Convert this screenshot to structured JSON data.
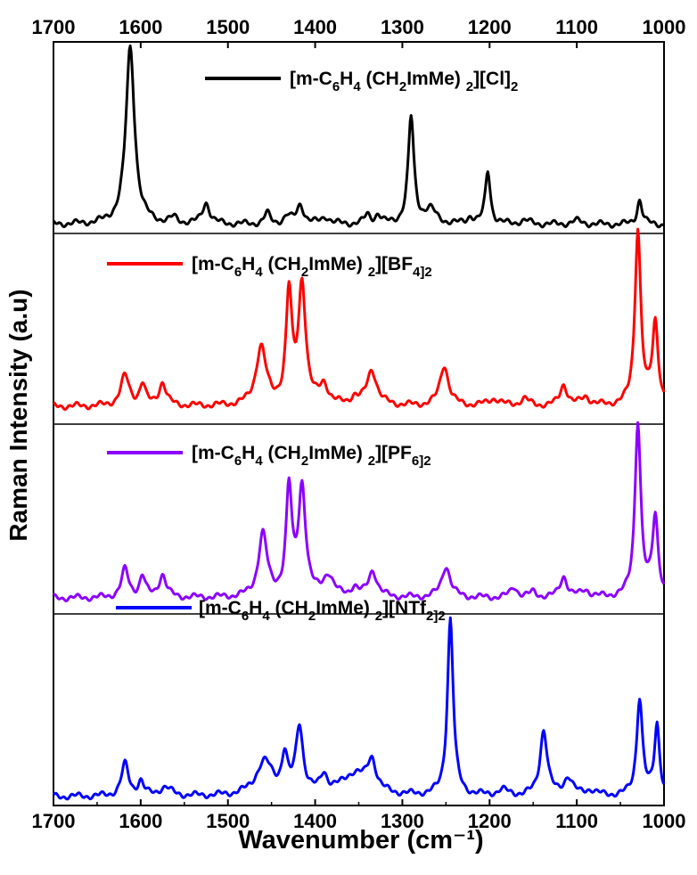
{
  "chart_data": {
    "type": "line",
    "xlabel": "Wavenumber (cm⁻¹)",
    "ylabel": "Raman Intensity (a.u)",
    "xlim": [
      1700,
      1000
    ],
    "x_reversed": true,
    "xticks": [
      1700,
      1600,
      1500,
      1400,
      1300,
      1200,
      1100,
      1000
    ],
    "yticks_shown": false,
    "grid": false,
    "panels": [
      {
        "series_name": "[m-C6H4(CH2ImMe)2][Cl]2",
        "legend": {
          "prefix": "[m-C",
          "s1": "6",
          "mid1": "H",
          "s2": "4",
          "mid2": " (CH",
          "s3": "2",
          "mid3": "ImMe) ",
          "s4": "2",
          "anion": "][Cl]",
          "s5": "2",
          "s6": ""
        },
        "color": "#000000",
        "baseline": 0.02,
        "peaks": [
          [
            1612,
            1.0,
            6
          ],
          [
            1562,
            0.03,
            5
          ],
          [
            1525,
            0.12,
            5
          ],
          [
            1455,
            0.06,
            4
          ],
          [
            1432,
            0.04,
            5
          ],
          [
            1417,
            0.11,
            5
          ],
          [
            1388,
            0.04,
            6
          ],
          [
            1340,
            0.05,
            4
          ],
          [
            1328,
            0.05,
            4
          ],
          [
            1290,
            0.6,
            4
          ],
          [
            1268,
            0.08,
            8
          ],
          [
            1222,
            0.04,
            4
          ],
          [
            1202,
            0.3,
            3.5
          ],
          [
            1160,
            0.02,
            8
          ],
          [
            1100,
            0.02,
            8
          ],
          [
            1028,
            0.14,
            3.5
          ]
        ]
      },
      {
        "series_name": "[m-C6H4(CH2ImMe)2][BF4]2",
        "legend": {
          "prefix": "[m-C",
          "s1": "6",
          "mid1": "H",
          "s2": "4",
          "mid2": " (CH",
          "s3": "2",
          "mid3": "ImMe) ",
          "s4": "2",
          "anion": "][BF",
          "s5": "4",
          "s6": "]2"
        },
        "color": "#ff0000",
        "baseline": 0.07,
        "peaks": [
          [
            1618,
            0.17,
            6
          ],
          [
            1598,
            0.12,
            4
          ],
          [
            1575,
            0.13,
            5
          ],
          [
            1462,
            0.33,
            7
          ],
          [
            1430,
            0.62,
            4
          ],
          [
            1415,
            0.68,
            5
          ],
          [
            1390,
            0.11,
            6
          ],
          [
            1355,
            0.04,
            5
          ],
          [
            1335,
            0.2,
            7
          ],
          [
            1252,
            0.23,
            6
          ],
          [
            1195,
            0.04,
            8
          ],
          [
            1160,
            0.04,
            6
          ],
          [
            1115,
            0.12,
            5
          ],
          [
            1090,
            0.05,
            6
          ],
          [
            1030,
            1.0,
            4
          ],
          [
            1010,
            0.46,
            4
          ]
        ]
      },
      {
        "series_name": "[m-C6H4(CH2ImMe)2][PF6]2",
        "legend": {
          "prefix": "[m-C",
          "s1": "6",
          "mid1": "H",
          "s2": "4",
          "mid2": " (CH",
          "s3": "2",
          "mid3": "ImMe) ",
          "s4": "2",
          "anion": "][PF",
          "s5": "6",
          "s6": "]2"
        },
        "color": "#8b00ff",
        "baseline": 0.06,
        "peaks": [
          [
            1618,
            0.16,
            5
          ],
          [
            1598,
            0.12,
            4
          ],
          [
            1575,
            0.13,
            5
          ],
          [
            1460,
            0.36,
            6
          ],
          [
            1430,
            0.6,
            4
          ],
          [
            1415,
            0.62,
            5
          ],
          [
            1385,
            0.12,
            7
          ],
          [
            1355,
            0.05,
            5
          ],
          [
            1334,
            0.15,
            6
          ],
          [
            1250,
            0.18,
            6
          ],
          [
            1172,
            0.06,
            5
          ],
          [
            1150,
            0.03,
            5
          ],
          [
            1115,
            0.12,
            5
          ],
          [
            1090,
            0.04,
            6
          ],
          [
            1030,
            1.0,
            4
          ],
          [
            1010,
            0.45,
            4
          ]
        ]
      },
      {
        "series_name": "[m-C6H4(CH2ImMe)2][NTf2]2",
        "legend": {
          "prefix": "[m-C",
          "s1": "6",
          "mid1": "H",
          "s2": "4",
          "mid2": " (CH",
          "s3": "2",
          "mid3": "ImMe) ",
          "s4": "2",
          "anion": "][NTf",
          "s5": "2",
          "s6": "]2"
        },
        "color": "#0000ff",
        "baseline": 0.02,
        "peaks": [
          [
            1618,
            0.18,
            5
          ],
          [
            1600,
            0.08,
            4
          ],
          [
            1572,
            0.05,
            8
          ],
          [
            1458,
            0.19,
            12
          ],
          [
            1435,
            0.2,
            4
          ],
          [
            1418,
            0.38,
            5
          ],
          [
            1390,
            0.1,
            5
          ],
          [
            1355,
            0.12,
            18
          ],
          [
            1335,
            0.17,
            6
          ],
          [
            1245,
            1.0,
            4
          ],
          [
            1185,
            0.03,
            8
          ],
          [
            1138,
            0.37,
            5
          ],
          [
            1110,
            0.1,
            6
          ],
          [
            1085,
            0.03,
            8
          ],
          [
            1028,
            0.55,
            4
          ],
          [
            1008,
            0.4,
            3.5
          ]
        ]
      }
    ]
  }
}
